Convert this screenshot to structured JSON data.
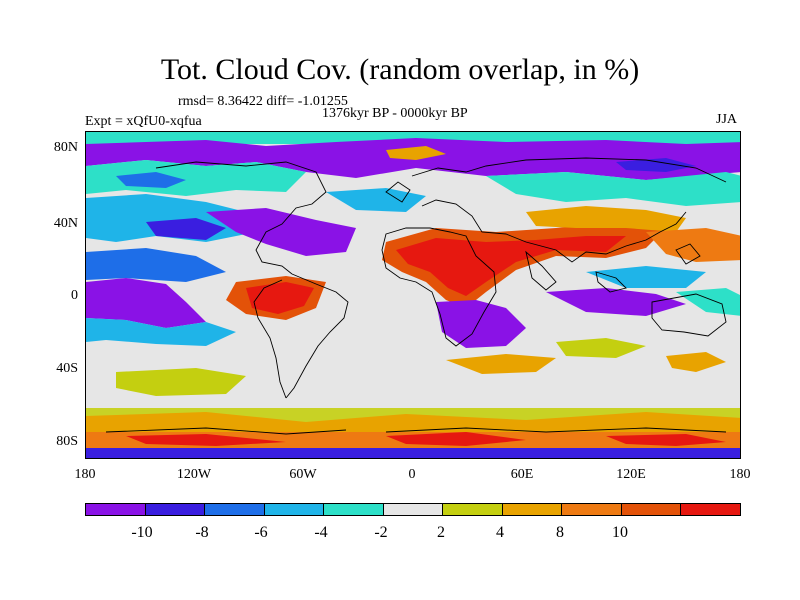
{
  "header": {
    "title": "Tot. Cloud Cov. (random overlap, in %)",
    "stats": "rmsd= 8.36422 diff= -1.01255",
    "period": "1376kyr BP - 0000kyr BP",
    "experiment": "Expt = xQfU0-xqfua",
    "season": "JJA"
  },
  "map": {
    "y_ticks": [
      "80N",
      "40N",
      "0",
      "40S",
      "80S"
    ],
    "x_ticks": [
      "180",
      "120W",
      "60W",
      "0",
      "60E",
      "120E",
      "180"
    ]
  },
  "colorbar": {
    "colors": [
      "#8a12e6",
      "#3a1ee0",
      "#1e6ee8",
      "#1fb4e8",
      "#2de0c8",
      "#e6e6e6",
      "#c4cf10",
      "#e8a300",
      "#ee7a12",
      "#e35208",
      "#e61810"
    ],
    "labels": [
      "-10",
      "-8",
      "-6",
      "-4",
      "-2",
      "2",
      "4",
      "8",
      "10"
    ]
  }
}
